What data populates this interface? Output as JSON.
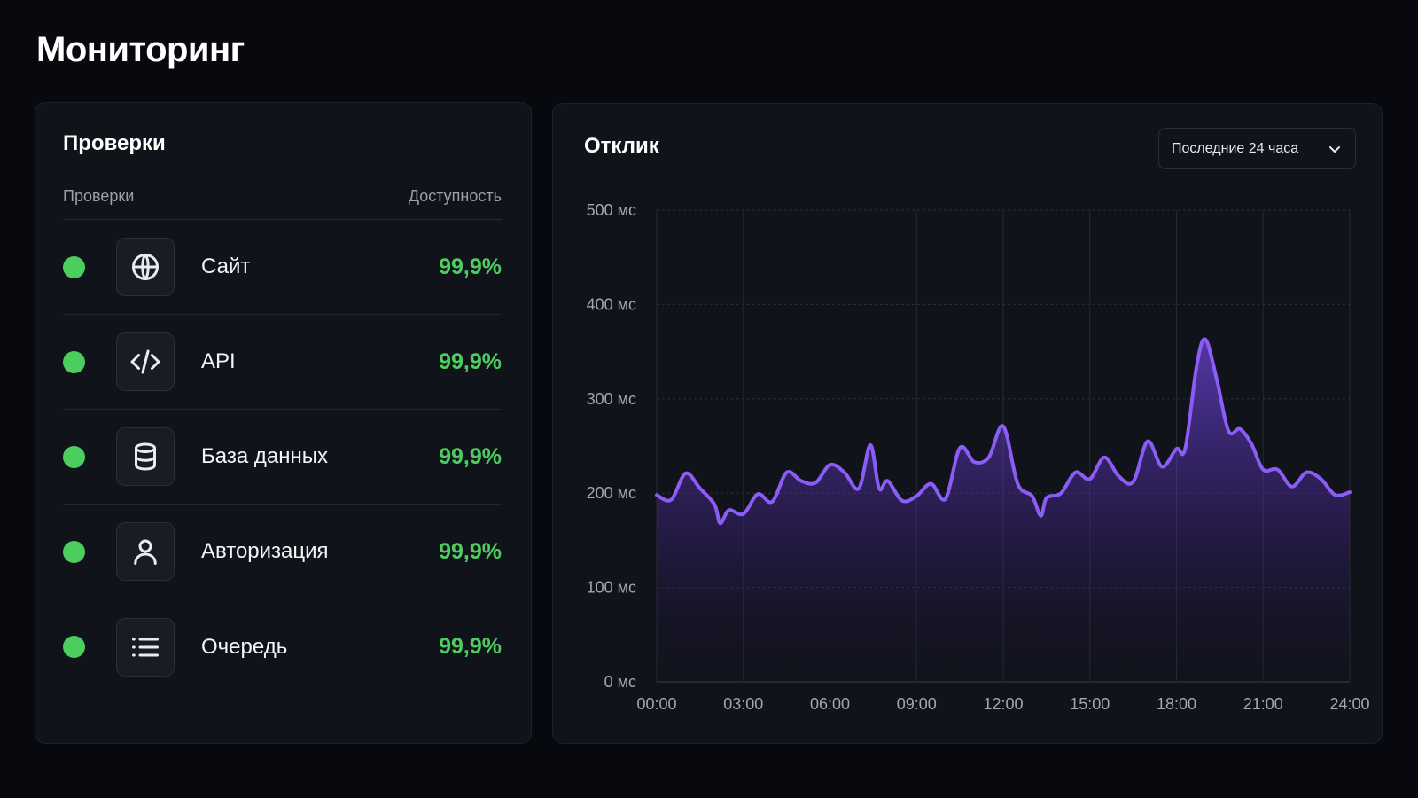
{
  "page": {
    "title": "Мониторинг"
  },
  "checks_panel": {
    "title": "Проверки",
    "col_left": "Проверки",
    "col_right": "Доступность",
    "items": [
      {
        "name": "Сайт",
        "value": "99,9%",
        "icon": "globe-icon",
        "status": "up"
      },
      {
        "name": "API",
        "value": "99,9%",
        "icon": "code-icon",
        "status": "up"
      },
      {
        "name": "База данных",
        "value": "99,9%",
        "icon": "database-icon",
        "status": "up"
      },
      {
        "name": "Авторизация",
        "value": "99,9%",
        "icon": "user-icon",
        "status": "up"
      },
      {
        "name": "Очередь",
        "value": "99,9%",
        "icon": "list-icon",
        "status": "up"
      }
    ]
  },
  "response_panel": {
    "title": "Отклик",
    "range_select": {
      "value": "Последние 24 часа"
    }
  },
  "colors": {
    "background": "#08090f",
    "panel": "#11131b",
    "status_green": "#4cce5f",
    "line": "#8b5cf6"
  },
  "chart_data": {
    "type": "area",
    "x_ticks": [
      "00:00",
      "03:00",
      "06:00",
      "09:00",
      "12:00",
      "15:00",
      "18:00",
      "21:00",
      "24:00"
    ],
    "y_ticks": [
      "0 мс",
      "100 мс",
      "200 мс",
      "300 мс",
      "400 мс",
      "500 мс"
    ],
    "ylim": [
      0,
      500
    ],
    "xlim": [
      0,
      24
    ],
    "grid": true,
    "series": [
      {
        "x": [
          0,
          0.5,
          1,
          1.5,
          2,
          2.2,
          2.5,
          3,
          3.5,
          4,
          4.5,
          5,
          5.5,
          6,
          6.5,
          7,
          7.4,
          7.7,
          8,
          8.5,
          9,
          9.5,
          10,
          10.5,
          11,
          11.5,
          12,
          12.5,
          13,
          13.3,
          13.5,
          14,
          14.5,
          15,
          15.5,
          16,
          16.5,
          17,
          17.5,
          18,
          18.3,
          18.7,
          19,
          19.4,
          19.8,
          20.2,
          20.6,
          21,
          21.5,
          22,
          22.5,
          23,
          23.5,
          24
        ],
        "y": [
          198,
          193,
          221,
          205,
          188,
          168,
          182,
          178,
          199,
          191,
          222,
          213,
          211,
          230,
          222,
          205,
          251,
          205,
          213,
          192,
          197,
          210,
          194,
          248,
          233,
          238,
          271,
          210,
          197,
          176,
          195,
          200,
          222,
          215,
          238,
          218,
          212,
          255,
          228,
          247,
          247,
          335,
          363,
          320,
          266,
          268,
          252,
          225,
          225,
          207,
          222,
          215,
          198,
          201
        ]
      }
    ]
  }
}
